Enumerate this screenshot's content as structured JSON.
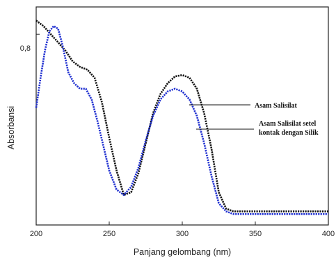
{
  "chart_data": {
    "type": "line",
    "xlabel": "Panjang gelombang (nm)",
    "ylabel": "Absorbansi",
    "xlim": [
      200,
      400
    ],
    "ylim": [
      0.1,
      0.9
    ],
    "x_ticks": [
      "200",
      "250",
      "300",
      "350",
      "400"
    ],
    "y_ticks": [
      "0,8"
    ],
    "annotations": [
      {
        "lines": [
          "Asam Salisilat"
        ],
        "series": "black"
      },
      {
        "lines": [
          "Asam Salisilat setel",
          "kontak dengan Silik"
        ],
        "series": "blue"
      }
    ],
    "series": [
      {
        "color": "#111111",
        "x": [
          200,
          205,
          210,
          215,
          220,
          225,
          230,
          235,
          240,
          245,
          250,
          255,
          260,
          265,
          270,
          275,
          280,
          285,
          290,
          295,
          300,
          305,
          310,
          315,
          320,
          325,
          330,
          335,
          340,
          350,
          360,
          370,
          380,
          390,
          400
        ],
        "y": [
          0.85,
          0.83,
          0.8,
          0.77,
          0.74,
          0.7,
          0.68,
          0.67,
          0.64,
          0.55,
          0.42,
          0.3,
          0.21,
          0.22,
          0.29,
          0.4,
          0.51,
          0.58,
          0.62,
          0.645,
          0.65,
          0.64,
          0.6,
          0.51,
          0.38,
          0.22,
          0.16,
          0.15,
          0.15,
          0.15,
          0.15,
          0.15,
          0.15,
          0.15,
          0.15
        ]
      },
      {
        "color": "#1f2fd0",
        "x": [
          200,
          203,
          206,
          209,
          212,
          215,
          218,
          222,
          226,
          230,
          234,
          238,
          242,
          246,
          250,
          255,
          260,
          265,
          270,
          275,
          280,
          285,
          290,
          295,
          300,
          305,
          310,
          315,
          320,
          325,
          330,
          335,
          340,
          350,
          360,
          370,
          380,
          390,
          400
        ],
        "y": [
          0.53,
          0.64,
          0.74,
          0.81,
          0.83,
          0.82,
          0.76,
          0.66,
          0.62,
          0.6,
          0.6,
          0.56,
          0.48,
          0.39,
          0.3,
          0.23,
          0.21,
          0.24,
          0.31,
          0.41,
          0.5,
          0.56,
          0.59,
          0.6,
          0.59,
          0.56,
          0.5,
          0.4,
          0.28,
          0.18,
          0.15,
          0.14,
          0.14,
          0.14,
          0.14,
          0.14,
          0.14,
          0.14,
          0.14
        ]
      }
    ]
  }
}
